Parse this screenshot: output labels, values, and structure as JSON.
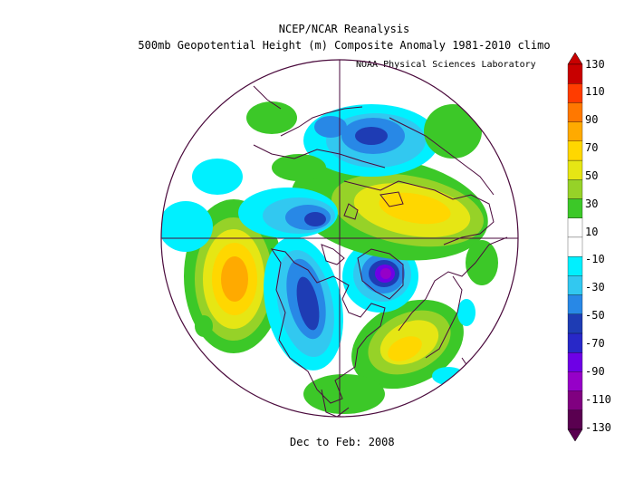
{
  "header": {
    "title": "NCEP/NCAR Reanalysis",
    "subtitle": "500mb Geopotential Height (m) Composite Anomaly 1981-2010 climo",
    "credit": "NOAA Physical Sciences Laboratory"
  },
  "footer": {
    "period": "Dec to Feb: 2008"
  },
  "colorbar": {
    "labels": [
      "130",
      "110",
      "90",
      "70",
      "50",
      "30",
      "10",
      "-10",
      "-30",
      "-50",
      "-70",
      "-90",
      "-110",
      "-130"
    ],
    "colors": [
      "#5a0050",
      "#800080",
      "#9600c8",
      "#6e00e6",
      "#2828c8",
      "#1e3cb4",
      "#2888e6",
      "#32c8f0",
      "#00f0ff",
      "#ffffff",
      "#ffffff",
      "#3cc828",
      "#96d228",
      "#e6e614",
      "#ffd700",
      "#ffaa00",
      "#ff7800",
      "#ff3c00",
      "#c80000"
    ]
  },
  "map": {
    "projection": "north-polar-stereographic",
    "field_colors": {
      "pos_low": "#3cc828",
      "pos_mid": "#e6e614",
      "pos_high": "#ffaa00",
      "neg_low": "#00f0ff",
      "neg_mid": "#1e3cb4",
      "neg_high": "#9600c8"
    }
  }
}
